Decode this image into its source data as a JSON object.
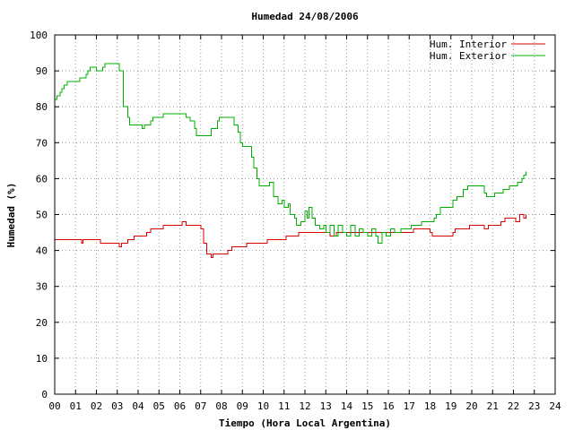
{
  "chart_data": {
    "type": "line",
    "title": "Humedad 24/08/2006",
    "xlabel": "Tiempo (Hora Local Argentina)",
    "ylabel": "Humedad (%)",
    "xlim": [
      0,
      24
    ],
    "ylim": [
      0,
      100
    ],
    "x_ticks": [
      "00",
      "01",
      "02",
      "03",
      "04",
      "05",
      "06",
      "07",
      "08",
      "09",
      "10",
      "11",
      "12",
      "13",
      "14",
      "15",
      "16",
      "17",
      "18",
      "19",
      "20",
      "21",
      "22",
      "23",
      "24"
    ],
    "y_ticks": [
      "0",
      "10",
      "20",
      "30",
      "40",
      "50",
      "60",
      "70",
      "80",
      "90",
      "100"
    ],
    "grid": true,
    "legend_position": "top-right",
    "series": [
      {
        "name": "Hum. Interior",
        "color": "#dd0000",
        "points": [
          [
            0.0,
            43
          ],
          [
            1.2,
            43
          ],
          [
            1.3,
            42
          ],
          [
            1.35,
            43
          ],
          [
            2.1,
            43
          ],
          [
            2.2,
            42
          ],
          [
            3.0,
            42
          ],
          [
            3.1,
            41
          ],
          [
            3.2,
            42
          ],
          [
            3.4,
            42
          ],
          [
            3.5,
            43
          ],
          [
            3.7,
            43
          ],
          [
            3.8,
            44
          ],
          [
            4.3,
            44
          ],
          [
            4.4,
            45
          ],
          [
            4.6,
            46
          ],
          [
            5.1,
            46
          ],
          [
            5.2,
            47
          ],
          [
            6.0,
            47
          ],
          [
            6.1,
            48
          ],
          [
            6.3,
            47
          ],
          [
            6.8,
            47
          ],
          [
            7.0,
            46
          ],
          [
            7.15,
            42
          ],
          [
            7.3,
            39
          ],
          [
            7.5,
            38
          ],
          [
            7.6,
            39
          ],
          [
            8.2,
            39
          ],
          [
            8.3,
            40
          ],
          [
            8.4,
            40
          ],
          [
            8.5,
            41
          ],
          [
            9.1,
            41
          ],
          [
            9.2,
            42
          ],
          [
            10.1,
            42
          ],
          [
            10.2,
            43
          ],
          [
            11.0,
            43
          ],
          [
            11.1,
            44
          ],
          [
            11.6,
            44
          ],
          [
            11.7,
            45
          ],
          [
            13.0,
            45
          ],
          [
            13.2,
            44
          ],
          [
            13.5,
            45
          ],
          [
            17.0,
            45
          ],
          [
            17.2,
            46
          ],
          [
            18.0,
            45
          ],
          [
            18.1,
            44
          ],
          [
            19.0,
            44
          ],
          [
            19.1,
            45
          ],
          [
            19.2,
            46
          ],
          [
            19.8,
            46
          ],
          [
            19.9,
            47
          ],
          [
            20.5,
            47
          ],
          [
            20.6,
            46
          ],
          [
            20.8,
            47
          ],
          [
            21.3,
            47
          ],
          [
            21.4,
            48
          ],
          [
            21.6,
            49
          ],
          [
            22.0,
            49
          ],
          [
            22.1,
            48
          ],
          [
            22.3,
            50
          ],
          [
            22.5,
            49
          ],
          [
            22.6,
            50
          ]
        ]
      },
      {
        "name": "Hum. Exterior",
        "color": "#00b000",
        "points": [
          [
            0.0,
            82
          ],
          [
            0.1,
            83
          ],
          [
            0.25,
            84
          ],
          [
            0.35,
            85
          ],
          [
            0.45,
            86
          ],
          [
            0.6,
            87
          ],
          [
            1.1,
            87
          ],
          [
            1.2,
            88
          ],
          [
            1.4,
            88
          ],
          [
            1.5,
            89
          ],
          [
            1.6,
            90
          ],
          [
            1.7,
            91
          ],
          [
            2.0,
            90
          ],
          [
            2.2,
            90
          ],
          [
            2.3,
            91
          ],
          [
            2.4,
            92
          ],
          [
            3.0,
            92
          ],
          [
            3.1,
            90
          ],
          [
            3.3,
            80
          ],
          [
            3.5,
            77
          ],
          [
            3.6,
            75
          ],
          [
            4.1,
            75
          ],
          [
            4.2,
            74
          ],
          [
            4.3,
            75
          ],
          [
            4.6,
            76
          ],
          [
            4.7,
            77
          ],
          [
            5.1,
            77
          ],
          [
            5.2,
            78
          ],
          [
            6.2,
            78
          ],
          [
            6.3,
            77
          ],
          [
            6.5,
            76
          ],
          [
            6.7,
            74
          ],
          [
            6.8,
            72
          ],
          [
            7.3,
            72
          ],
          [
            7.5,
            74
          ],
          [
            7.8,
            76
          ],
          [
            7.9,
            77
          ],
          [
            8.4,
            77
          ],
          [
            8.6,
            75
          ],
          [
            8.8,
            73
          ],
          [
            8.9,
            70
          ],
          [
            9.0,
            69
          ],
          [
            9.3,
            69
          ],
          [
            9.45,
            66
          ],
          [
            9.55,
            63
          ],
          [
            9.7,
            60
          ],
          [
            9.8,
            58
          ],
          [
            10.1,
            58
          ],
          [
            10.3,
            59
          ],
          [
            10.5,
            55
          ],
          [
            10.7,
            53
          ],
          [
            10.9,
            54
          ],
          [
            11.0,
            52
          ],
          [
            11.2,
            53
          ],
          [
            11.3,
            50
          ],
          [
            11.5,
            49
          ],
          [
            11.6,
            47
          ],
          [
            11.8,
            48
          ],
          [
            12.0,
            51
          ],
          [
            12.1,
            49
          ],
          [
            12.2,
            52
          ],
          [
            12.35,
            49
          ],
          [
            12.5,
            47
          ],
          [
            12.7,
            46
          ],
          [
            12.9,
            47
          ],
          [
            13.0,
            45
          ],
          [
            13.2,
            47
          ],
          [
            13.4,
            44
          ],
          [
            13.6,
            47
          ],
          [
            13.8,
            45
          ],
          [
            14.0,
            44
          ],
          [
            14.2,
            47
          ],
          [
            14.4,
            44
          ],
          [
            14.6,
            46
          ],
          [
            14.8,
            45
          ],
          [
            15.0,
            44
          ],
          [
            15.2,
            46
          ],
          [
            15.4,
            44
          ],
          [
            15.5,
            42
          ],
          [
            15.7,
            45
          ],
          [
            15.9,
            44
          ],
          [
            16.1,
            46
          ],
          [
            16.3,
            45
          ],
          [
            16.6,
            46
          ],
          [
            16.9,
            46
          ],
          [
            17.1,
            47
          ],
          [
            17.4,
            47
          ],
          [
            17.6,
            48
          ],
          [
            18.0,
            48
          ],
          [
            18.2,
            49
          ],
          [
            18.3,
            50
          ],
          [
            18.5,
            52
          ],
          [
            19.0,
            52
          ],
          [
            19.1,
            54
          ],
          [
            19.3,
            55
          ],
          [
            19.6,
            57
          ],
          [
            19.8,
            58
          ],
          [
            20.5,
            58
          ],
          [
            20.6,
            56
          ],
          [
            20.7,
            55
          ],
          [
            21.0,
            55
          ],
          [
            21.1,
            56
          ],
          [
            21.4,
            56
          ],
          [
            21.5,
            57
          ],
          [
            21.8,
            58
          ],
          [
            22.0,
            58
          ],
          [
            22.2,
            59
          ],
          [
            22.4,
            60
          ],
          [
            22.5,
            61
          ],
          [
            22.6,
            62
          ]
        ]
      }
    ]
  }
}
